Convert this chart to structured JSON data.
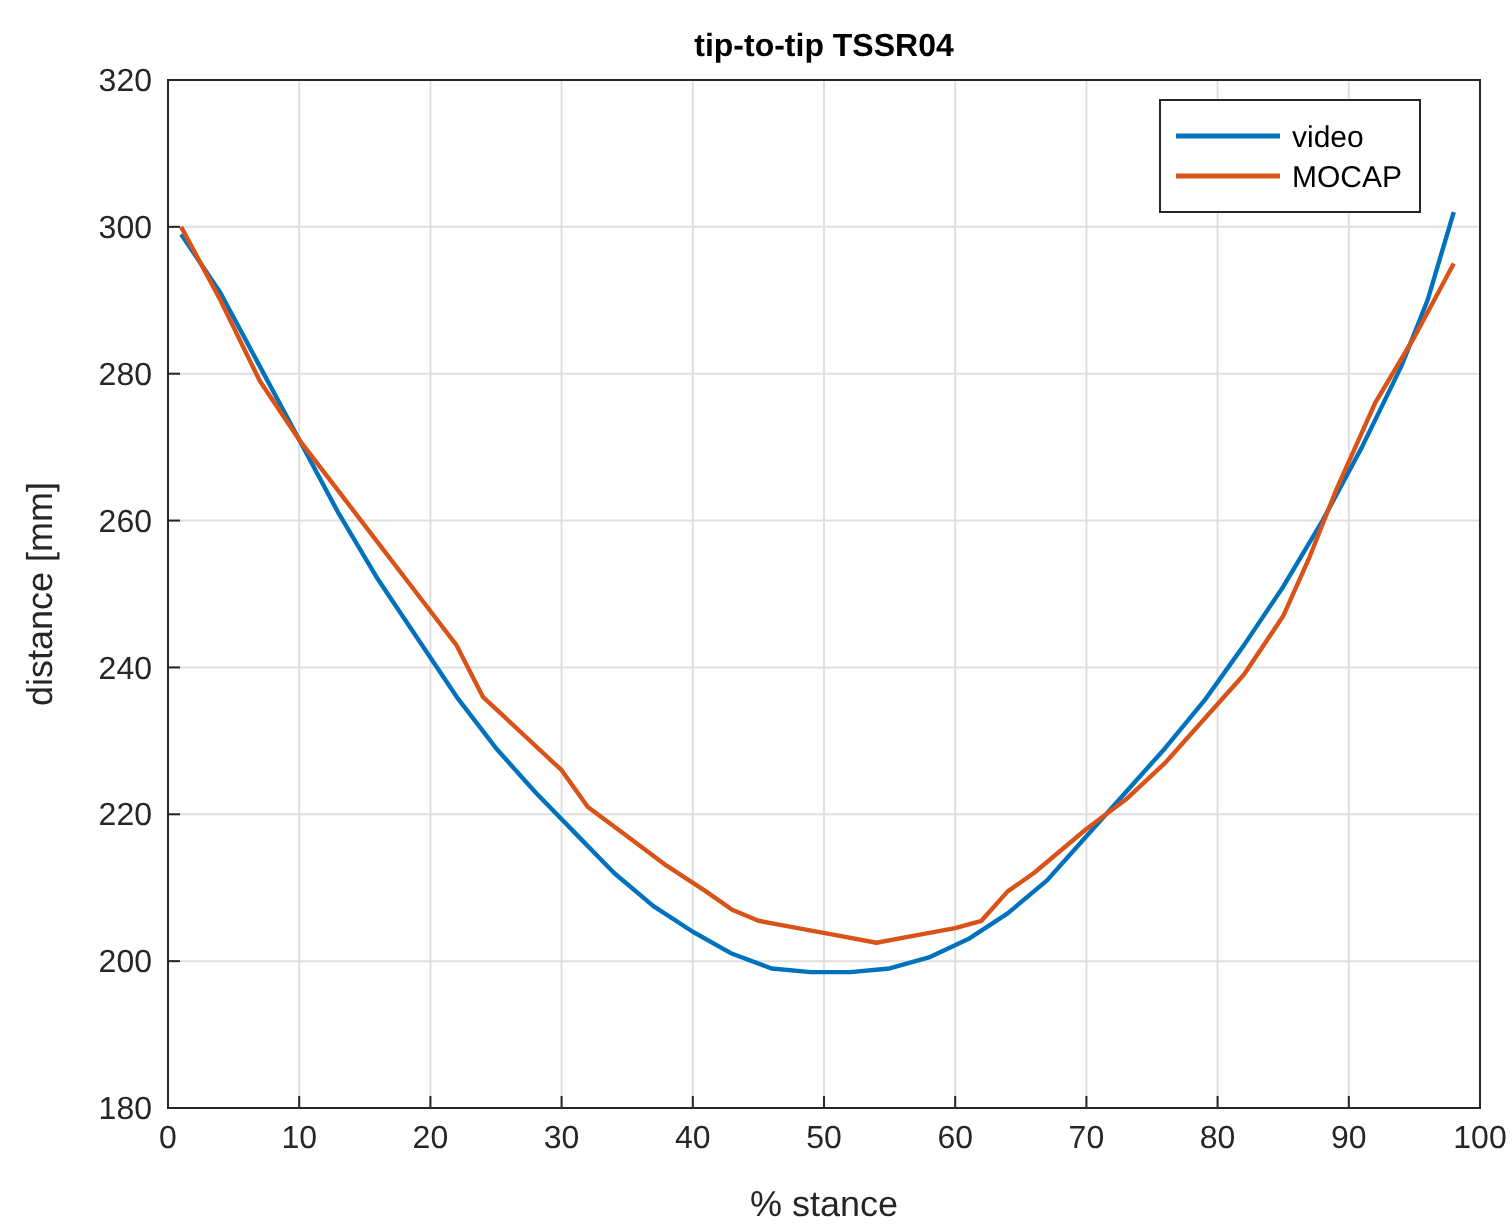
{
  "chart_data": {
    "type": "line",
    "title": "tip-to-tip TSSR04",
    "xlabel": "% stance",
    "ylabel": "distance [mm]",
    "xlim": [
      0,
      100
    ],
    "xticks": [
      0,
      10,
      20,
      30,
      40,
      50,
      60,
      70,
      80,
      90,
      100
    ],
    "ylim": [
      180,
      320
    ],
    "yticks": [
      180,
      200,
      220,
      240,
      260,
      280,
      300,
      320
    ],
    "grid": true,
    "legend": "top right",
    "line_style": "solid",
    "series": [
      {
        "name": "video",
        "color": "#0072bd",
        "x": [
          1,
          4,
          7,
          10,
          13,
          16,
          19,
          22,
          25,
          28,
          31,
          34,
          37,
          40,
          43,
          46,
          49,
          52,
          55,
          58,
          61,
          64,
          67,
          70,
          73,
          76,
          79,
          82,
          85,
          88,
          91,
          94,
          96,
          98
        ],
        "values": [
          299,
          291,
          281,
          271,
          261,
          252,
          244,
          236,
          229,
          223,
          217.5,
          212,
          207.5,
          204,
          201,
          199,
          198.5,
          198.5,
          199,
          200.5,
          203,
          206.5,
          211,
          217,
          223,
          229,
          235.5,
          243,
          251,
          260,
          270,
          281,
          290,
          302
        ]
      },
      {
        "name": "MOCAP",
        "color": "#d95319",
        "x": [
          1,
          4,
          7,
          10,
          13,
          16,
          19,
          22,
          24,
          27,
          30,
          32,
          35,
          38,
          41,
          43,
          45,
          48,
          51,
          54,
          57,
          60,
          62,
          64,
          66,
          68,
          70,
          73,
          76,
          79,
          82,
          85,
          87,
          89,
          92,
          95,
          98
        ],
        "values": [
          300,
          290,
          279,
          271,
          264,
          257,
          250,
          243,
          236,
          231,
          226,
          221,
          217,
          213,
          209.5,
          207,
          205.5,
          204.5,
          203.5,
          202.5,
          203.5,
          204.5,
          205.5,
          209.5,
          212,
          215,
          218,
          222,
          227,
          233,
          239,
          247,
          255,
          264,
          276,
          285,
          295
        ]
      }
    ]
  }
}
